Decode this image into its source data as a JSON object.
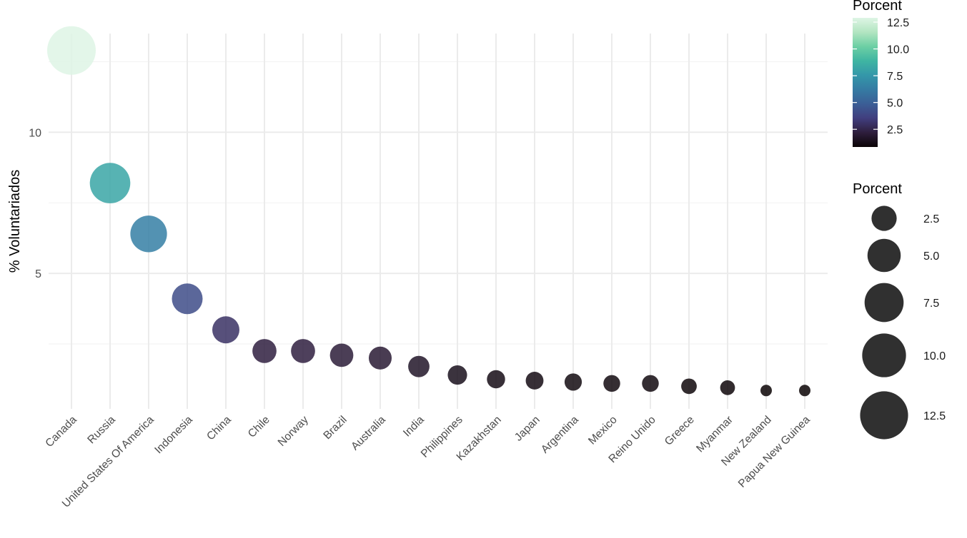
{
  "chart_data": {
    "type": "scatter",
    "title": "",
    "xlabel": "",
    "ylabel": "% Voluntariados",
    "ylim": [
      0.2,
      13.5
    ],
    "y_ticks": [
      5,
      10
    ],
    "grid": true,
    "categories": [
      "Canada",
      "Russia",
      "United States Of America",
      "Indonesia",
      "China",
      "Chile",
      "Norway",
      "Brazil",
      "Australia",
      "India",
      "Philippines",
      "Kazakhstan",
      "Japan",
      "Argentina",
      "Mexico",
      "Reino Unido",
      "Greece",
      "Myanmar",
      "New Zealand",
      "Papua New Guinea"
    ],
    "values": [
      12.9,
      8.2,
      6.4,
      4.1,
      3.0,
      2.25,
      2.25,
      2.1,
      2.0,
      1.7,
      1.4,
      1.25,
      1.2,
      1.15,
      1.1,
      1.1,
      1.0,
      0.95,
      0.85,
      0.85
    ],
    "color_legend": {
      "title": "Porcent",
      "ticks": [
        2.5,
        5.0,
        7.5,
        10.0,
        12.5
      ],
      "tick_labels": [
        "2.5",
        "5.0",
        "7.5",
        "10.0",
        "12.5"
      ],
      "range": [
        0.85,
        12.9
      ],
      "palette": [
        "#0b0405",
        "#2e1e3c",
        "#413e7e",
        "#3b5e96",
        "#357ba3",
        "#3497a9",
        "#3fb5a2",
        "#6ccfa4",
        "#b2e5c1",
        "#def5e5"
      ]
    },
    "size_legend": {
      "title": "Porcent",
      "ticks": [
        2.5,
        5.0,
        7.5,
        10.0,
        12.5
      ],
      "tick_labels": [
        "2.5",
        "5.0",
        "7.5",
        "10.0",
        "12.5"
      ]
    },
    "legend_position": "right"
  }
}
